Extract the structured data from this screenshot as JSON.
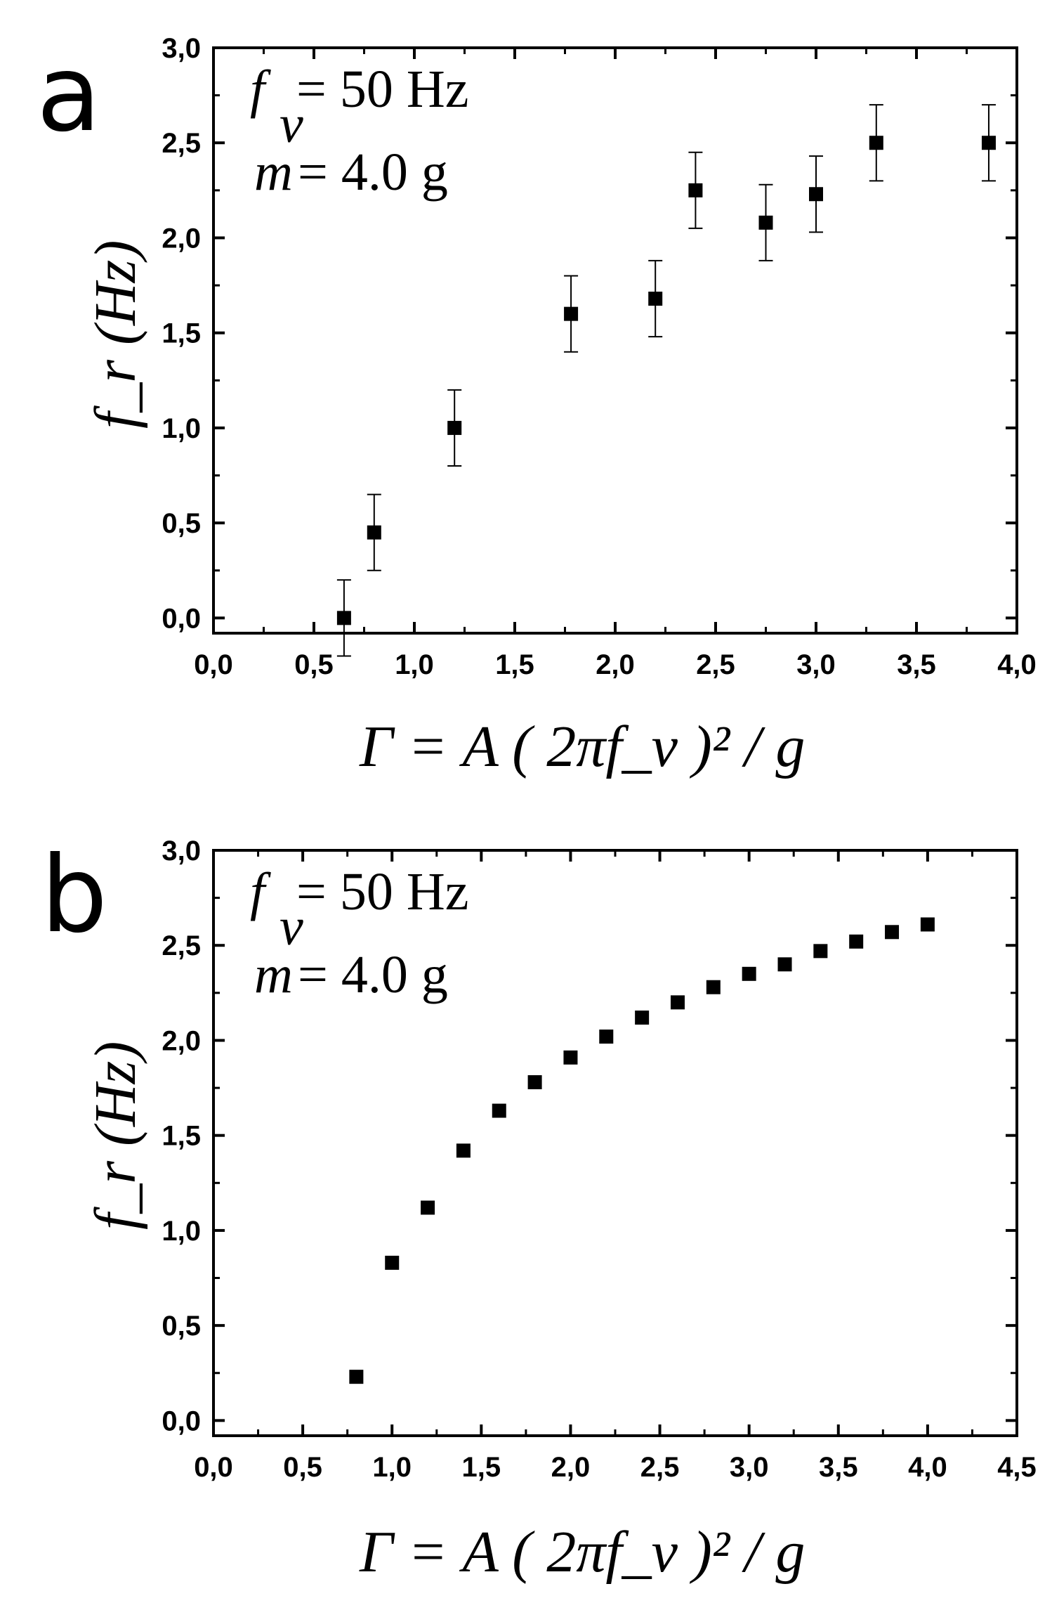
{
  "chart_data": [
    {
      "id": "a",
      "type": "scatter",
      "panel_label": "a",
      "title": "",
      "xlabel": "Γ = A ( 2πf_v )² / g",
      "ylabel": "f_r (Hz)",
      "xlim": [
        0.0,
        4.0
      ],
      "ylim": [
        -0.08,
        3.0
      ],
      "x_ticks": [
        0.0,
        0.5,
        1.0,
        1.5,
        2.0,
        2.5,
        3.0,
        3.5,
        4.0
      ],
      "x_tick_labels": [
        "0,0",
        "0,5",
        "1,0",
        "1,5",
        "2,0",
        "2,5",
        "3,0",
        "3,5",
        "4,0"
      ],
      "y_ticks": [
        0.0,
        0.5,
        1.0,
        1.5,
        2.0,
        2.5,
        3.0
      ],
      "y_tick_labels": [
        "0,0",
        "0,5",
        "1,0",
        "1,5",
        "2,0",
        "2,5",
        "3,0"
      ],
      "grid": false,
      "annotation": {
        "line1_symbol": "f",
        "line1_subscript": "v",
        "line1_value": "= 50 Hz",
        "line2_symbol": "m",
        "line2_value": "= 4.0 g"
      },
      "series": [
        {
          "name": "f_r",
          "marker": "square",
          "x": [
            0.65,
            0.8,
            1.2,
            1.78,
            2.2,
            2.4,
            2.75,
            3.0,
            3.3,
            3.86
          ],
          "y": [
            0.0,
            0.45,
            1.0,
            1.6,
            1.68,
            2.25,
            2.08,
            2.23,
            2.5,
            2.5
          ],
          "yerr": [
            0.2,
            0.2,
            0.2,
            0.2,
            0.2,
            0.2,
            0.2,
            0.2,
            0.2,
            0.2
          ]
        }
      ]
    },
    {
      "id": "b",
      "type": "scatter",
      "panel_label": "b",
      "title": "",
      "xlabel": "Γ = A ( 2πf_v )² / g",
      "ylabel": "f_r (Hz)",
      "xlim": [
        0.0,
        4.5
      ],
      "ylim": [
        -0.08,
        3.0
      ],
      "x_ticks": [
        0.0,
        0.5,
        1.0,
        1.5,
        2.0,
        2.5,
        3.0,
        3.5,
        4.0,
        4.5
      ],
      "x_tick_labels": [
        "0,0",
        "0,5",
        "1,0",
        "1,5",
        "2,0",
        "2,5",
        "3,0",
        "3,5",
        "4,0",
        "4,5"
      ],
      "y_ticks": [
        0.0,
        0.5,
        1.0,
        1.5,
        2.0,
        2.5,
        3.0
      ],
      "y_tick_labels": [
        "0,0",
        "0,5",
        "1,0",
        "1,5",
        "2,0",
        "2,5",
        "3,0"
      ],
      "grid": false,
      "annotation": {
        "line1_symbol": "f",
        "line1_subscript": "v",
        "line1_value": "= 50 Hz",
        "line2_symbol": "m",
        "line2_value": "= 4.0 g"
      },
      "series": [
        {
          "name": "f_r",
          "marker": "square",
          "x": [
            0.8,
            1.0,
            1.2,
            1.4,
            1.6,
            1.8,
            2.0,
            2.2,
            2.4,
            2.6,
            2.8,
            3.0,
            3.2,
            3.4,
            3.6,
            3.8,
            4.0
          ],
          "y": [
            0.23,
            0.83,
            1.12,
            1.42,
            1.63,
            1.78,
            1.91,
            2.02,
            2.12,
            2.2,
            2.28,
            2.35,
            2.4,
            2.47,
            2.52,
            2.57,
            2.61
          ]
        }
      ]
    }
  ]
}
